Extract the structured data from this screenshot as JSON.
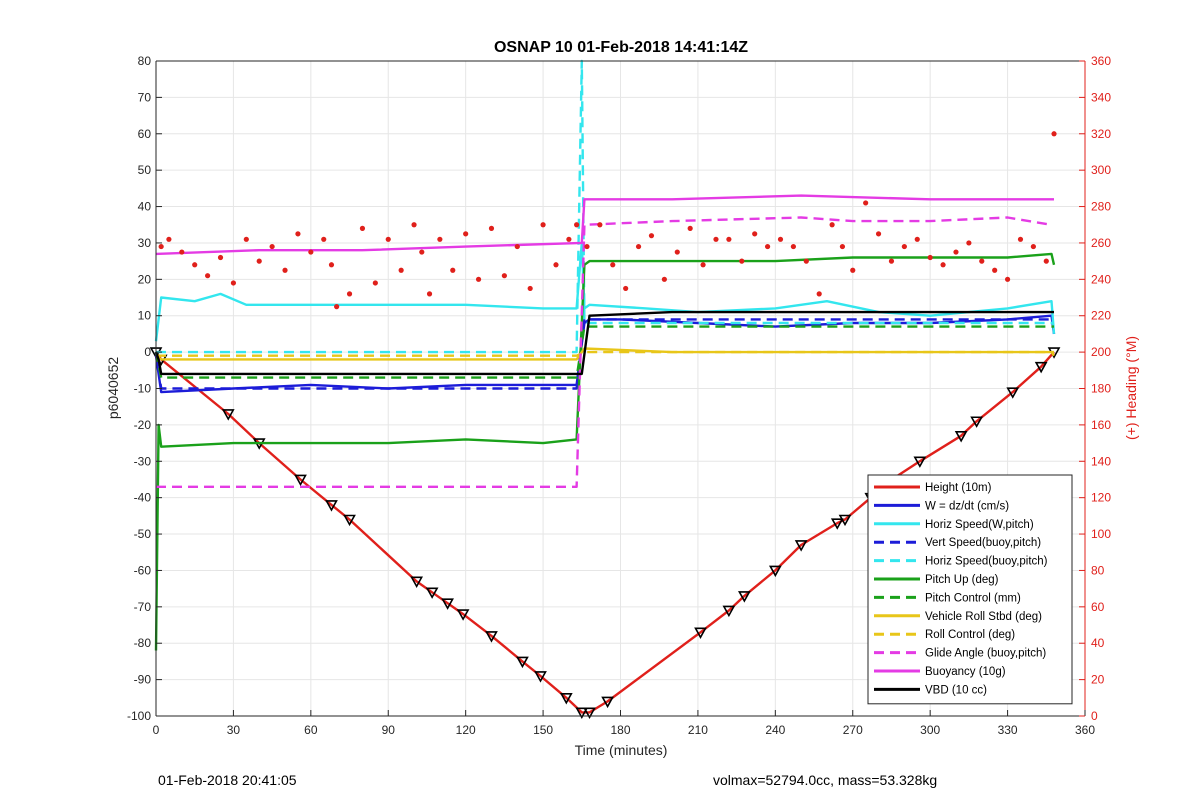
{
  "chart_data": {
    "type": "line",
    "title": "OSNAP 10 01-Feb-2018 14:41:14Z",
    "xlabel": "Time (minutes)",
    "ylabel_left": "p6040652",
    "ylabel_right": "(+) Heading (°M)",
    "xlim": [
      0,
      360
    ],
    "ylim_left": [
      -100,
      80
    ],
    "ylim_right": [
      0,
      360
    ],
    "x_ticks": [
      0,
      30,
      60,
      90,
      120,
      150,
      180,
      210,
      240,
      270,
      300,
      330,
      360
    ],
    "y_ticks_left": [
      -100,
      -90,
      -80,
      -70,
      -60,
      -50,
      -40,
      -30,
      -20,
      -10,
      0,
      10,
      20,
      30,
      40,
      50,
      60,
      70,
      80
    ],
    "y_ticks_right": [
      0,
      20,
      40,
      60,
      80,
      100,
      120,
      140,
      160,
      180,
      200,
      220,
      240,
      260,
      280,
      300,
      320,
      340,
      360
    ],
    "grid": true,
    "legend_position": "bottom-right",
    "series": [
      {
        "name": "Height (10m)",
        "color": "#e0201b",
        "dash": "solid",
        "marker_color": "#000000",
        "x": [
          0,
          2,
          28,
          40,
          56,
          68,
          75,
          101,
          107,
          113,
          119,
          130,
          142,
          149,
          159,
          165,
          168,
          175,
          211,
          222,
          228,
          240,
          250,
          264,
          267,
          277,
          283,
          296,
          312,
          318,
          332,
          343,
          348
        ],
        "values": [
          0,
          -2,
          -17,
          -25,
          -35,
          -42,
          -46,
          -63,
          -66,
          -69,
          -72,
          -78,
          -85,
          -89,
          -95,
          -99,
          -99,
          -96,
          -77,
          -71,
          -67,
          -60,
          -53,
          -47,
          -46,
          -40,
          -36,
          -30,
          -23,
          -19,
          -11,
          -4,
          0
        ]
      },
      {
        "name": "W = dz/dt (cm/s)",
        "color": "#1c1cd8",
        "dash": "solid",
        "x": [
          0,
          2,
          30,
          60,
          90,
          120,
          150,
          163,
          166,
          168,
          180,
          210,
          240,
          270,
          300,
          330,
          347,
          348
        ],
        "values": [
          -1,
          -11,
          -10,
          -9,
          -10,
          -9,
          -9,
          -9,
          8,
          9,
          9,
          8,
          7,
          8,
          8,
          9,
          10,
          5
        ]
      },
      {
        "name": "Horiz Speed(W,pitch)",
        "color": "#33e6ee",
        "dash": "solid",
        "x": [
          0,
          2,
          15,
          25,
          35,
          60,
          90,
          120,
          150,
          163,
          165,
          166,
          168,
          190,
          210,
          240,
          260,
          280,
          300,
          330,
          347,
          348
        ],
        "values": [
          3,
          15,
          14,
          16,
          13,
          13,
          13,
          13,
          12,
          12,
          30,
          12,
          13,
          12,
          11,
          12,
          14,
          11,
          10,
          12,
          14,
          5
        ]
      },
      {
        "name": "Vert Speed(buoy,pitch)",
        "color": "#1c1cd8",
        "dash": "dashed",
        "x": [
          0,
          2,
          163,
          166,
          348
        ],
        "values": [
          0,
          -10,
          -10,
          9,
          9
        ]
      },
      {
        "name": "Horiz Speed(buoy,pitch)",
        "color": "#33e6ee",
        "dash": "dashed",
        "x": [
          0,
          2,
          163,
          165,
          166,
          348
        ],
        "values": [
          0,
          0,
          0,
          80,
          8,
          8
        ]
      },
      {
        "name": "Pitch Up (deg)",
        "color": "#1aa11a",
        "dash": "solid",
        "x": [
          0,
          1,
          2,
          30,
          60,
          90,
          120,
          150,
          163,
          166,
          168,
          200,
          240,
          270,
          300,
          330,
          347,
          348
        ],
        "values": [
          -82,
          -20,
          -26,
          -25,
          -25,
          -25,
          -24,
          -25,
          -24,
          24,
          25,
          25,
          25,
          26,
          26,
          26,
          27,
          24
        ]
      },
      {
        "name": "Pitch Control (mm)",
        "color": "#1aa11a",
        "dash": "dashed",
        "x": [
          0,
          2,
          163,
          166,
          348
        ],
        "values": [
          0,
          -7,
          -7,
          7,
          7
        ]
      },
      {
        "name": "Vehicle Roll Stbd (deg)",
        "color": "#e8c619",
        "dash": "solid",
        "x": [
          0,
          2,
          40,
          80,
          120,
          163,
          166,
          200,
          240,
          280,
          320,
          347,
          348
        ],
        "values": [
          -1,
          -2,
          -2,
          -2,
          -2,
          -2,
          1,
          0,
          0,
          0,
          0,
          0,
          -1
        ]
      },
      {
        "name": "Roll Control (deg)",
        "color": "#e8c619",
        "dash": "dashed",
        "x": [
          0,
          2,
          163,
          166,
          348
        ],
        "values": [
          -1,
          -1,
          -1,
          0,
          0
        ]
      },
      {
        "name": "Glide Angle (buoy,pitch)",
        "color": "#e43be4",
        "dash": "dashed",
        "x": [
          0,
          2,
          60,
          120,
          163,
          166,
          200,
          250,
          270,
          300,
          330,
          347
        ],
        "values": [
          -37,
          -37,
          -37,
          -37,
          -37,
          35,
          36,
          37,
          36,
          36,
          37,
          35
        ]
      },
      {
        "name": "Buoyancy (10g)",
        "color": "#e43be4",
        "dash": "solid",
        "x": [
          0,
          40,
          80,
          120,
          165,
          166,
          200,
          250,
          300,
          348
        ],
        "values": [
          27,
          28,
          28,
          29,
          30,
          42,
          42,
          43,
          42,
          42
        ]
      },
      {
        "name": "VBD (10 cc)",
        "color": "#000000",
        "dash": "solid",
        "x": [
          0,
          1,
          2,
          60,
          120,
          165,
          168,
          200,
          250,
          300,
          348
        ],
        "values": [
          0,
          -2,
          -6,
          -6,
          -6,
          -6,
          10,
          11,
          11,
          11,
          11
        ]
      },
      {
        "name": "Heading (°M)",
        "axis": "right",
        "color": "#e0201b",
        "style": "dots",
        "x": [
          2,
          5,
          10,
          15,
          20,
          25,
          30,
          35,
          40,
          45,
          50,
          55,
          60,
          65,
          68,
          70,
          75,
          80,
          85,
          90,
          95,
          100,
          103,
          106,
          110,
          115,
          120,
          125,
          130,
          135,
          140,
          145,
          150,
          155,
          160,
          163,
          167,
          172,
          177,
          182,
          187,
          192,
          197,
          202,
          207,
          212,
          217,
          222,
          227,
          232,
          237,
          242,
          247,
          252,
          257,
          262,
          266,
          270,
          275,
          280,
          285,
          290,
          295,
          300,
          305,
          310,
          315,
          320,
          325,
          330,
          335,
          340,
          345,
          348
        ],
        "values": [
          258,
          262,
          255,
          248,
          242,
          252,
          238,
          262,
          250,
          258,
          245,
          265,
          255,
          262,
          248,
          225,
          232,
          268,
          238,
          262,
          245,
          270,
          255,
          232,
          262,
          245,
          265,
          240,
          268,
          242,
          258,
          235,
          270,
          248,
          262,
          270,
          258,
          270,
          248,
          235,
          258,
          264,
          240,
          255,
          268,
          248,
          262,
          262,
          250,
          265,
          258,
          262,
          258,
          250,
          232,
          270,
          258,
          245,
          282,
          265,
          250,
          258,
          262,
          252,
          248,
          255,
          260,
          250,
          245,
          240,
          262,
          258,
          250,
          320
        ]
      }
    ]
  },
  "footer": {
    "left": "01-Feb-2018 20:41:05",
    "right": "volmax=52794.0cc, mass=53.328kg"
  }
}
